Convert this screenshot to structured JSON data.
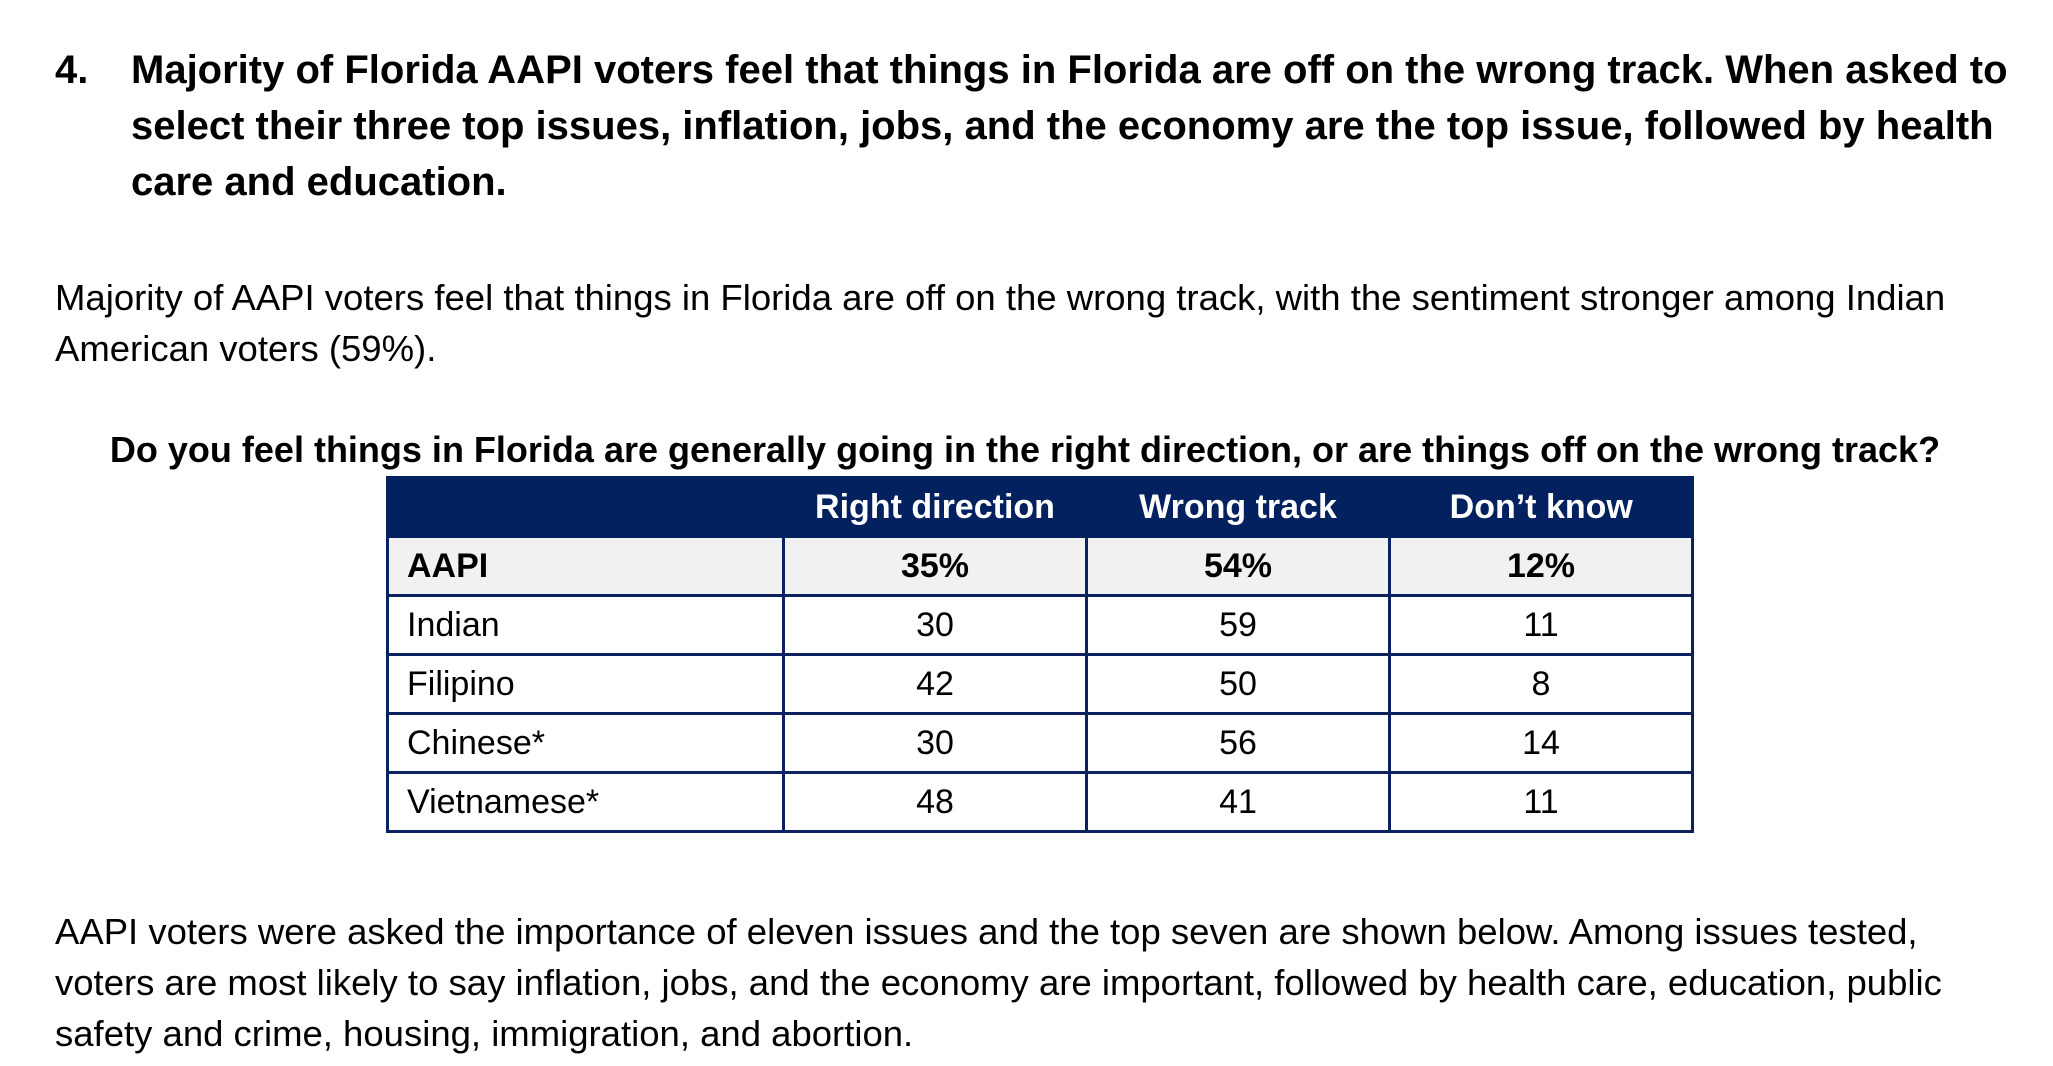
{
  "heading": {
    "number": "4.",
    "text": "Majority of Florida AAPI voters feel that things in Florida are off on the wrong track. When asked to select their three top issues, inflation, jobs, and the economy are the top issue, followed by health care and education."
  },
  "intro_paragraph": "Majority of AAPI voters feel that things in Florida are off on the wrong track, with the sentiment stronger among Indian American voters (59%).",
  "table": {
    "question": "Do you feel things in Florida are generally going in the right direction, or are things off on the wrong track?",
    "columns": [
      "",
      "Right direction",
      "Wrong track",
      "Don’t know"
    ],
    "rows": [
      {
        "label": "AAPI",
        "right_direction": "35%",
        "wrong_track": "54%",
        "dont_know": "12%"
      },
      {
        "label": "Indian",
        "right_direction": "30",
        "wrong_track": "59",
        "dont_know": "11"
      },
      {
        "label": "Filipino",
        "right_direction": "42",
        "wrong_track": "50",
        "dont_know": "8"
      },
      {
        "label": "Chinese*",
        "right_direction": "30",
        "wrong_track": "56",
        "dont_know": "14"
      },
      {
        "label": "Vietnamese*",
        "right_direction": "48",
        "wrong_track": "41",
        "dont_know": "11"
      }
    ]
  },
  "closing_paragraph": "AAPI voters were asked the importance of eleven issues and the top seven are shown below. Among issues tested, voters are most likely to say inflation, jobs, and the economy are important, followed by health care, education, public safety and crime, housing, immigration, and abortion.",
  "colors": {
    "header_background": "#04215f",
    "header_text": "#ffffff",
    "border": "#0b2160",
    "total_row_background": "#f1f1f1"
  }
}
